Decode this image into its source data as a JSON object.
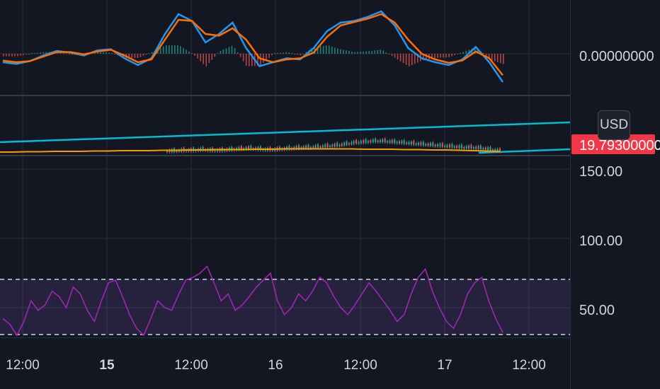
{
  "currency_button": "USD",
  "colors": {
    "background": "#131722",
    "grid": "#2a2e39",
    "separator": "#363a45",
    "macd_line": "#2196f3",
    "signal_line": "#ff6d00",
    "hist_up": "#26a69a",
    "hist_down": "#ef5350",
    "trend_line": "#00bcd4",
    "ma_line": "#ff9800",
    "rsi_line": "#9c27b0",
    "rsi_band": "#7e57c2",
    "price_badge": "#f23645"
  },
  "chart_data": [
    {
      "type": "line",
      "panel": "macd",
      "y_tick_labels": [
        "0.00000000"
      ],
      "series": [
        {
          "values": [
            -1.5,
            -1.8,
            -1.3,
            -0.3,
            0.5,
            0.2,
            -0.3,
            0.6,
            0.8,
            -0.8,
            -2.0,
            -0.8,
            3.5,
            7.0,
            5.8,
            2.0,
            3.5,
            5.5,
            1.0,
            -2.2,
            -1.5,
            -0.8,
            -1.0,
            1.0,
            4.0,
            5.5,
            5.8,
            6.5,
            7.5,
            5.0,
            1.0,
            -0.8,
            -1.5,
            -2.0,
            -1.0,
            1.2,
            -1.5,
            -5.0
          ]
        },
        {
          "values": [
            -1.2,
            -1.5,
            -1.3,
            -0.5,
            0.3,
            0.3,
            -0.1,
            0.4,
            0.7,
            -0.3,
            -1.5,
            -1.0,
            2.5,
            6.0,
            5.8,
            3.5,
            3.2,
            4.5,
            2.5,
            -0.8,
            -1.5,
            -1.0,
            -0.8,
            0.2,
            3.0,
            5.0,
            5.6,
            6.2,
            7.0,
            5.5,
            2.5,
            0.0,
            -1.0,
            -1.6,
            -1.2,
            0.4,
            -0.8,
            -3.8
          ]
        }
      ],
      "histogram": [
        -0.3,
        -0.3,
        0.0,
        0.2,
        0.2,
        -0.1,
        -0.2,
        0.2,
        0.1,
        -0.5,
        -0.5,
        0.2,
        1.0,
        1.0,
        0.0,
        -1.5,
        0.3,
        1.0,
        -1.5,
        -1.4,
        0.0,
        0.2,
        -0.2,
        0.8,
        1.0,
        0.5,
        0.2,
        0.3,
        0.5,
        -0.5,
        -1.5,
        -0.8,
        -0.5,
        -0.4,
        0.2,
        0.8,
        -0.7,
        -1.2
      ]
    },
    {
      "type": "line",
      "panel": "price",
      "price_badge": "19.79300000",
      "series": [
        {
          "values": [
            20,
            20,
            21,
            21,
            22,
            21,
            21,
            22,
            23,
            24,
            23,
            22,
            22,
            23,
            24,
            25,
            25,
            26,
            27,
            28,
            30,
            32,
            33,
            34,
            34,
            33,
            32,
            31,
            30,
            29,
            28,
            27,
            26,
            25,
            25,
            24,
            22,
            20
          ]
        },
        {
          "values": [
            20,
            20,
            20.5,
            20.5,
            21,
            21,
            21,
            21.5,
            21.5,
            22,
            22,
            22,
            22.5,
            22.5,
            23,
            23,
            23.5,
            23.5,
            23.5,
            24,
            24,
            24.5,
            24.5,
            24.5,
            24.5,
            24.5,
            24.5,
            24,
            24,
            24,
            23.5,
            23.5,
            23,
            23,
            22.5,
            22,
            21.5,
            21
          ]
        }
      ]
    },
    {
      "type": "line",
      "panel": "rsi",
      "y_tick_labels": [
        "150.00",
        "100.00",
        "50.00"
      ],
      "x_tick_labels": [
        "12:00",
        "15",
        "12:00",
        "16",
        "12:00",
        "17",
        "12:00"
      ],
      "series": [
        {
          "values": [
            42,
            38,
            30,
            40,
            55,
            48,
            52,
            62,
            58,
            50,
            65,
            60,
            48,
            40,
            55,
            68,
            70,
            58,
            45,
            35,
            30,
            42,
            55,
            50,
            48,
            60,
            70,
            72,
            75,
            80,
            68,
            55,
            60,
            48,
            52,
            58,
            65,
            70,
            75,
            55,
            45,
            50,
            60,
            55,
            62,
            72,
            68,
            58,
            50,
            45,
            52,
            60,
            68,
            62,
            55,
            48,
            40,
            45,
            60,
            72,
            78,
            62,
            50,
            40,
            35,
            45,
            60,
            68,
            72,
            55,
            42,
            32
          ]
        }
      ]
    }
  ]
}
